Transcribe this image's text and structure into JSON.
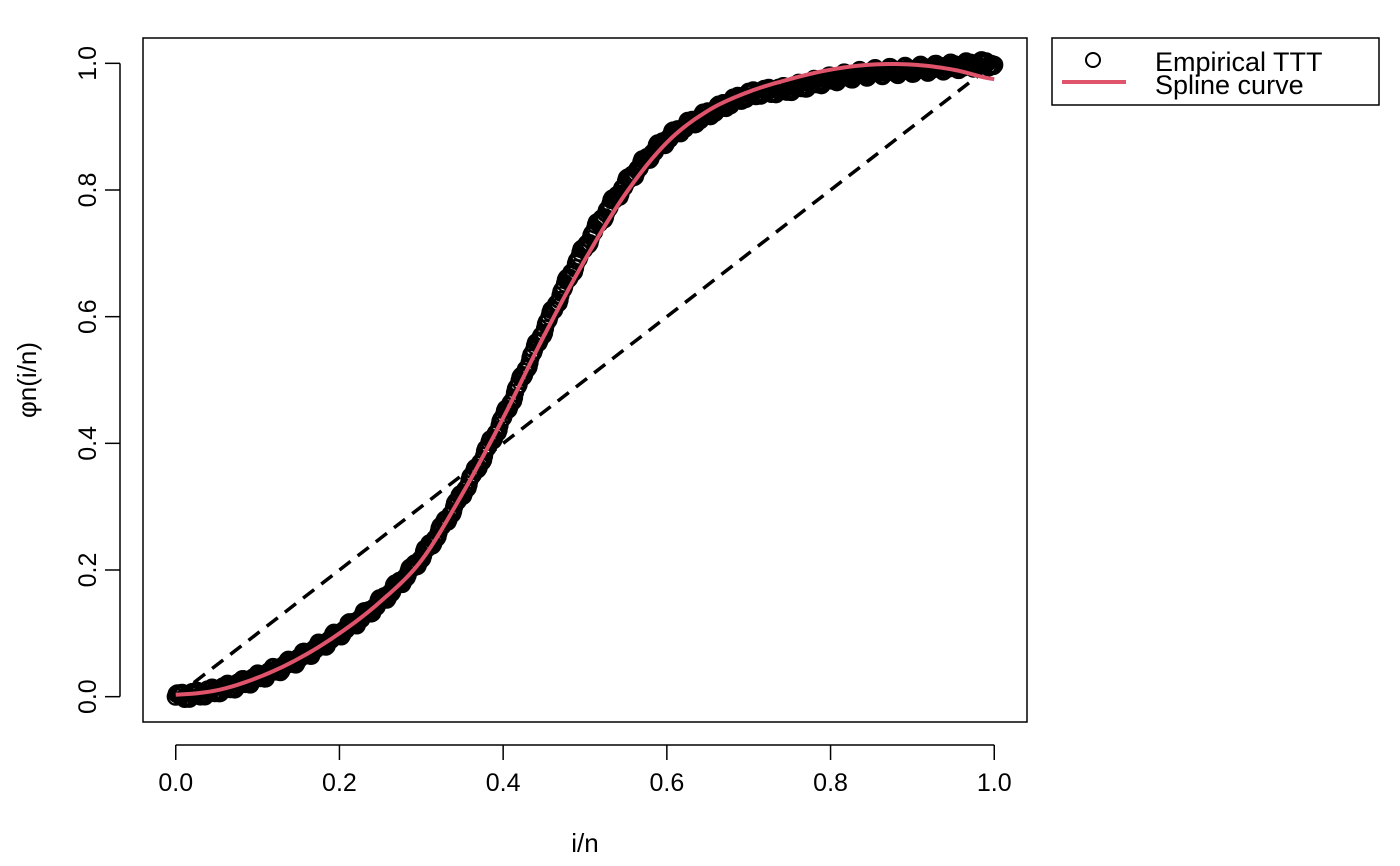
{
  "chart_data": {
    "type": "scatter",
    "title": "",
    "xlabel": "i/n",
    "ylabel": "φn(i/n)",
    "xlim": [
      -0.04,
      1.04
    ],
    "ylim": [
      -0.04,
      1.04
    ],
    "xticks": [
      {
        "value": 0.0,
        "label": "0.0"
      },
      {
        "value": 0.2,
        "label": "0.2"
      },
      {
        "value": 0.4,
        "label": "0.4"
      },
      {
        "value": 0.6,
        "label": "0.6"
      },
      {
        "value": 0.8,
        "label": "0.8"
      },
      {
        "value": 1.0,
        "label": "1.0"
      }
    ],
    "yticks": [
      {
        "value": 0.0,
        "label": "0.0"
      },
      {
        "value": 0.2,
        "label": "0.2"
      },
      {
        "value": 0.4,
        "label": "0.4"
      },
      {
        "value": 0.6,
        "label": "0.6"
      },
      {
        "value": 0.8,
        "label": "0.8"
      },
      {
        "value": 1.0,
        "label": "1.0"
      }
    ],
    "grid": false,
    "legend_position": "outside-top-right",
    "series": [
      {
        "name": "Empirical TTT",
        "type": "scatter",
        "marker": "open-circle",
        "color": "#000000",
        "x": [
          0.0,
          0.05,
          0.1,
          0.15,
          0.2,
          0.25,
          0.3,
          0.35,
          0.4,
          0.45,
          0.5,
          0.55,
          0.6,
          0.65,
          0.7,
          0.75,
          0.8,
          0.85,
          0.9,
          0.95,
          1.0
        ],
        "y": [
          0.0,
          0.01,
          0.03,
          0.06,
          0.1,
          0.15,
          0.22,
          0.32,
          0.44,
          0.58,
          0.71,
          0.81,
          0.88,
          0.92,
          0.95,
          0.96,
          0.975,
          0.985,
          0.99,
          0.995,
          1.0
        ]
      },
      {
        "name": "Spline curve",
        "type": "line",
        "color": "#DF536B",
        "x": [
          0.0,
          0.05,
          0.1,
          0.15,
          0.2,
          0.25,
          0.3,
          0.35,
          0.4,
          0.45,
          0.5,
          0.55,
          0.6,
          0.65,
          0.7,
          0.75,
          0.8,
          0.85,
          0.9,
          0.95,
          1.0
        ],
        "y": [
          0.003,
          0.01,
          0.03,
          0.06,
          0.1,
          0.15,
          0.215,
          0.32,
          0.44,
          0.57,
          0.69,
          0.795,
          0.875,
          0.925,
          0.955,
          0.975,
          0.99,
          0.998,
          0.998,
          0.99,
          0.975
        ]
      },
      {
        "type": "reference-line",
        "style": "dashed",
        "color": "#000000",
        "x": [
          0.0,
          1.0
        ],
        "y": [
          0.0,
          1.0
        ]
      }
    ]
  }
}
